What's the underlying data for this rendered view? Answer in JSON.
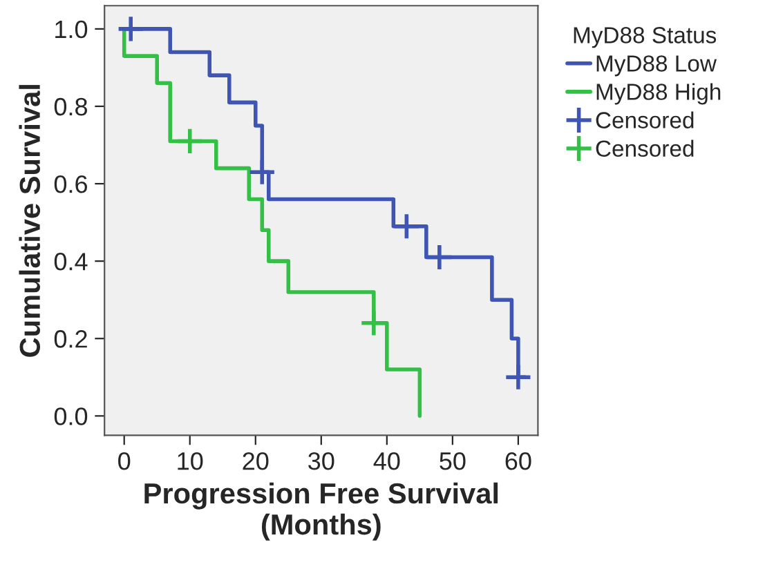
{
  "chart_data": {
    "type": "step",
    "xlabel": "Progression Free Survival\n(Months)",
    "ylabel": "Cumulative Survival",
    "legend_title": "MyD88 Status",
    "legend": "right",
    "series": [
      {
        "name": "MyD88 Low",
        "color": "#3f55b3",
        "x": [
          0,
          7,
          13,
          16,
          20,
          21,
          22,
          41,
          46,
          56,
          59,
          60,
          61
        ],
        "values": [
          1.0,
          0.94,
          0.88,
          0.81,
          0.75,
          0.63,
          0.56,
          0.49,
          0.41,
          0.3,
          0.2,
          0.1,
          0.1
        ]
      },
      {
        "name": "MyD88 High",
        "color": "#34c046",
        "x": [
          0,
          0,
          5,
          7,
          14,
          19,
          21,
          22,
          25,
          38,
          40,
          45,
          45
        ],
        "values": [
          1.0,
          0.93,
          0.86,
          0.71,
          0.64,
          0.56,
          0.48,
          0.4,
          0.32,
          0.24,
          0.12,
          0.0,
          0.0
        ]
      },
      {
        "name": "Censored",
        "type": "scatter",
        "marker": "cross",
        "color": "#3f55b3",
        "x": [
          1,
          21,
          43,
          48,
          60
        ],
        "values": [
          1.0,
          0.63,
          0.49,
          0.41,
          0.1
        ]
      },
      {
        "name": "Censored",
        "type": "scatter",
        "marker": "cross",
        "color": "#34c046",
        "x": [
          10,
          38
        ],
        "values": [
          0.71,
          0.24
        ]
      }
    ],
    "xlim": [
      -3,
      63
    ],
    "xticks": [
      0,
      10,
      20,
      30,
      40,
      50,
      60
    ],
    "ylim": [
      -0.05,
      1.06
    ],
    "yticks": [
      {
        "value": 0,
        "label": "0.0"
      },
      {
        "value": 0.2,
        "label": "0.2"
      },
      {
        "value": 0.4,
        "label": "0.4"
      },
      {
        "value": 0.6,
        "label": "0.6"
      },
      {
        "value": 0.8,
        "label": "0.8"
      },
      {
        "value": 1.0,
        "label": "1.0"
      }
    ],
    "grid": false
  }
}
